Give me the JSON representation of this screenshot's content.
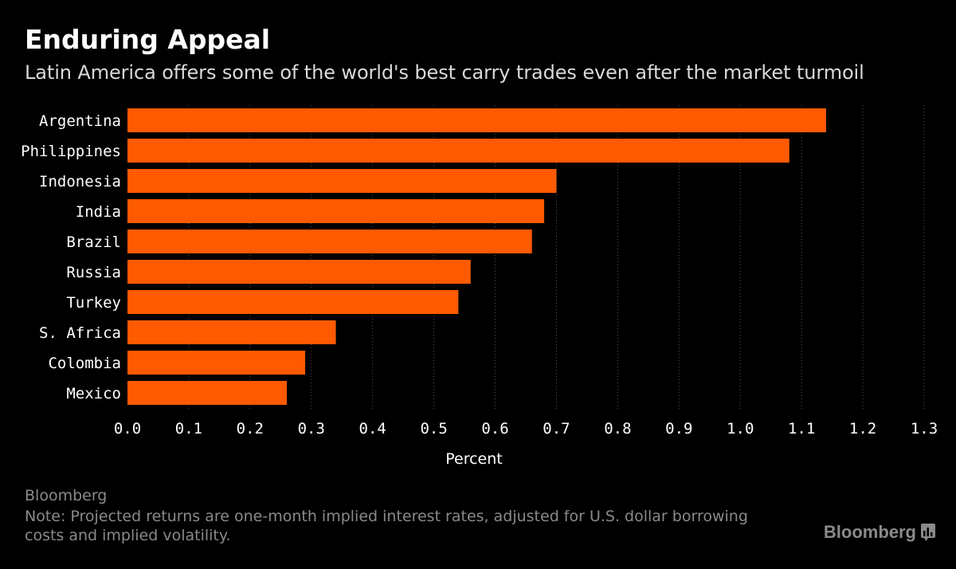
{
  "header": {
    "title": "Enduring Appeal",
    "subtitle": "Latin America offers some of the world's best carry trades even after the market turmoil"
  },
  "chart_data": {
    "type": "bar",
    "orientation": "horizontal",
    "categories": [
      "Argentina",
      "Philippines",
      "Indonesia",
      "India",
      "Brazil",
      "Russia",
      "Turkey",
      "S. Africa",
      "Colombia",
      "Mexico"
    ],
    "values": [
      1.14,
      1.08,
      0.7,
      0.68,
      0.66,
      0.56,
      0.54,
      0.34,
      0.29,
      0.26
    ],
    "xlabel": "Percent",
    "ylabel": "",
    "xlim": [
      0,
      1.3
    ],
    "ticks": [
      "0.0",
      "0.1",
      "0.2",
      "0.3",
      "0.4",
      "0.5",
      "0.6",
      "0.7",
      "0.8",
      "0.9",
      "1.0",
      "1.1",
      "1.2",
      "1.3"
    ],
    "grid": "vertical dotted",
    "bar_color": "#ff5a00"
  },
  "footer": {
    "source": "Bloomberg",
    "note": "Note: Projected returns are one-month implied interest rates, adjusted for U.S. dollar borrowing costs and implied volatility.",
    "logo_text": "Bloomberg",
    "logo_icon": "bloomberg-chart-icon"
  },
  "colors": {
    "background": "#000000",
    "bar": "#ff5a00",
    "text": "#ffffff",
    "muted": "#8a8a8a",
    "grid": "#555555"
  }
}
